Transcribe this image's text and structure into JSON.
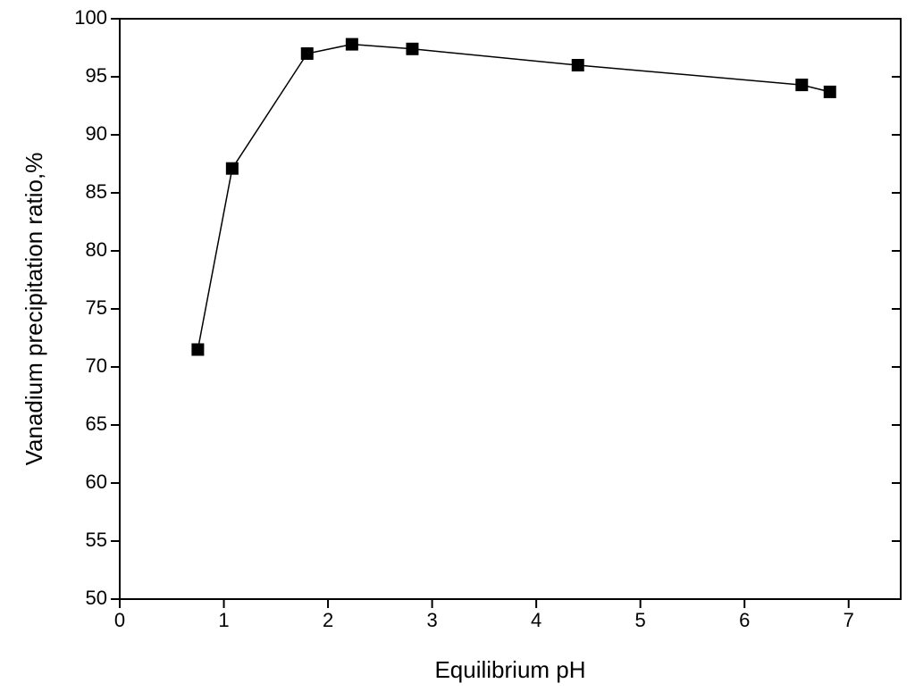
{
  "chart_data": {
    "type": "line",
    "x_label": "Equilibrium pH",
    "y_label": "Vanadium precipitation ratio,%",
    "x": [
      0.75,
      1.08,
      1.8,
      2.23,
      2.81,
      4.4,
      6.55,
      6.82
    ],
    "series": [
      {
        "color": "#000000",
        "values": [
          71.5,
          87.1,
          97.0,
          97.8,
          97.4,
          96.0,
          94.3,
          93.7
        ]
      }
    ],
    "xlim": [
      0,
      7.5
    ],
    "xticks": [
      0,
      1,
      2,
      3,
      4,
      5,
      6,
      7
    ],
    "ylim": [
      50,
      100
    ],
    "yticks": [
      50,
      55,
      60,
      65,
      70,
      75,
      80,
      85,
      90,
      95,
      100
    ],
    "marker": "square",
    "grid": false
  }
}
